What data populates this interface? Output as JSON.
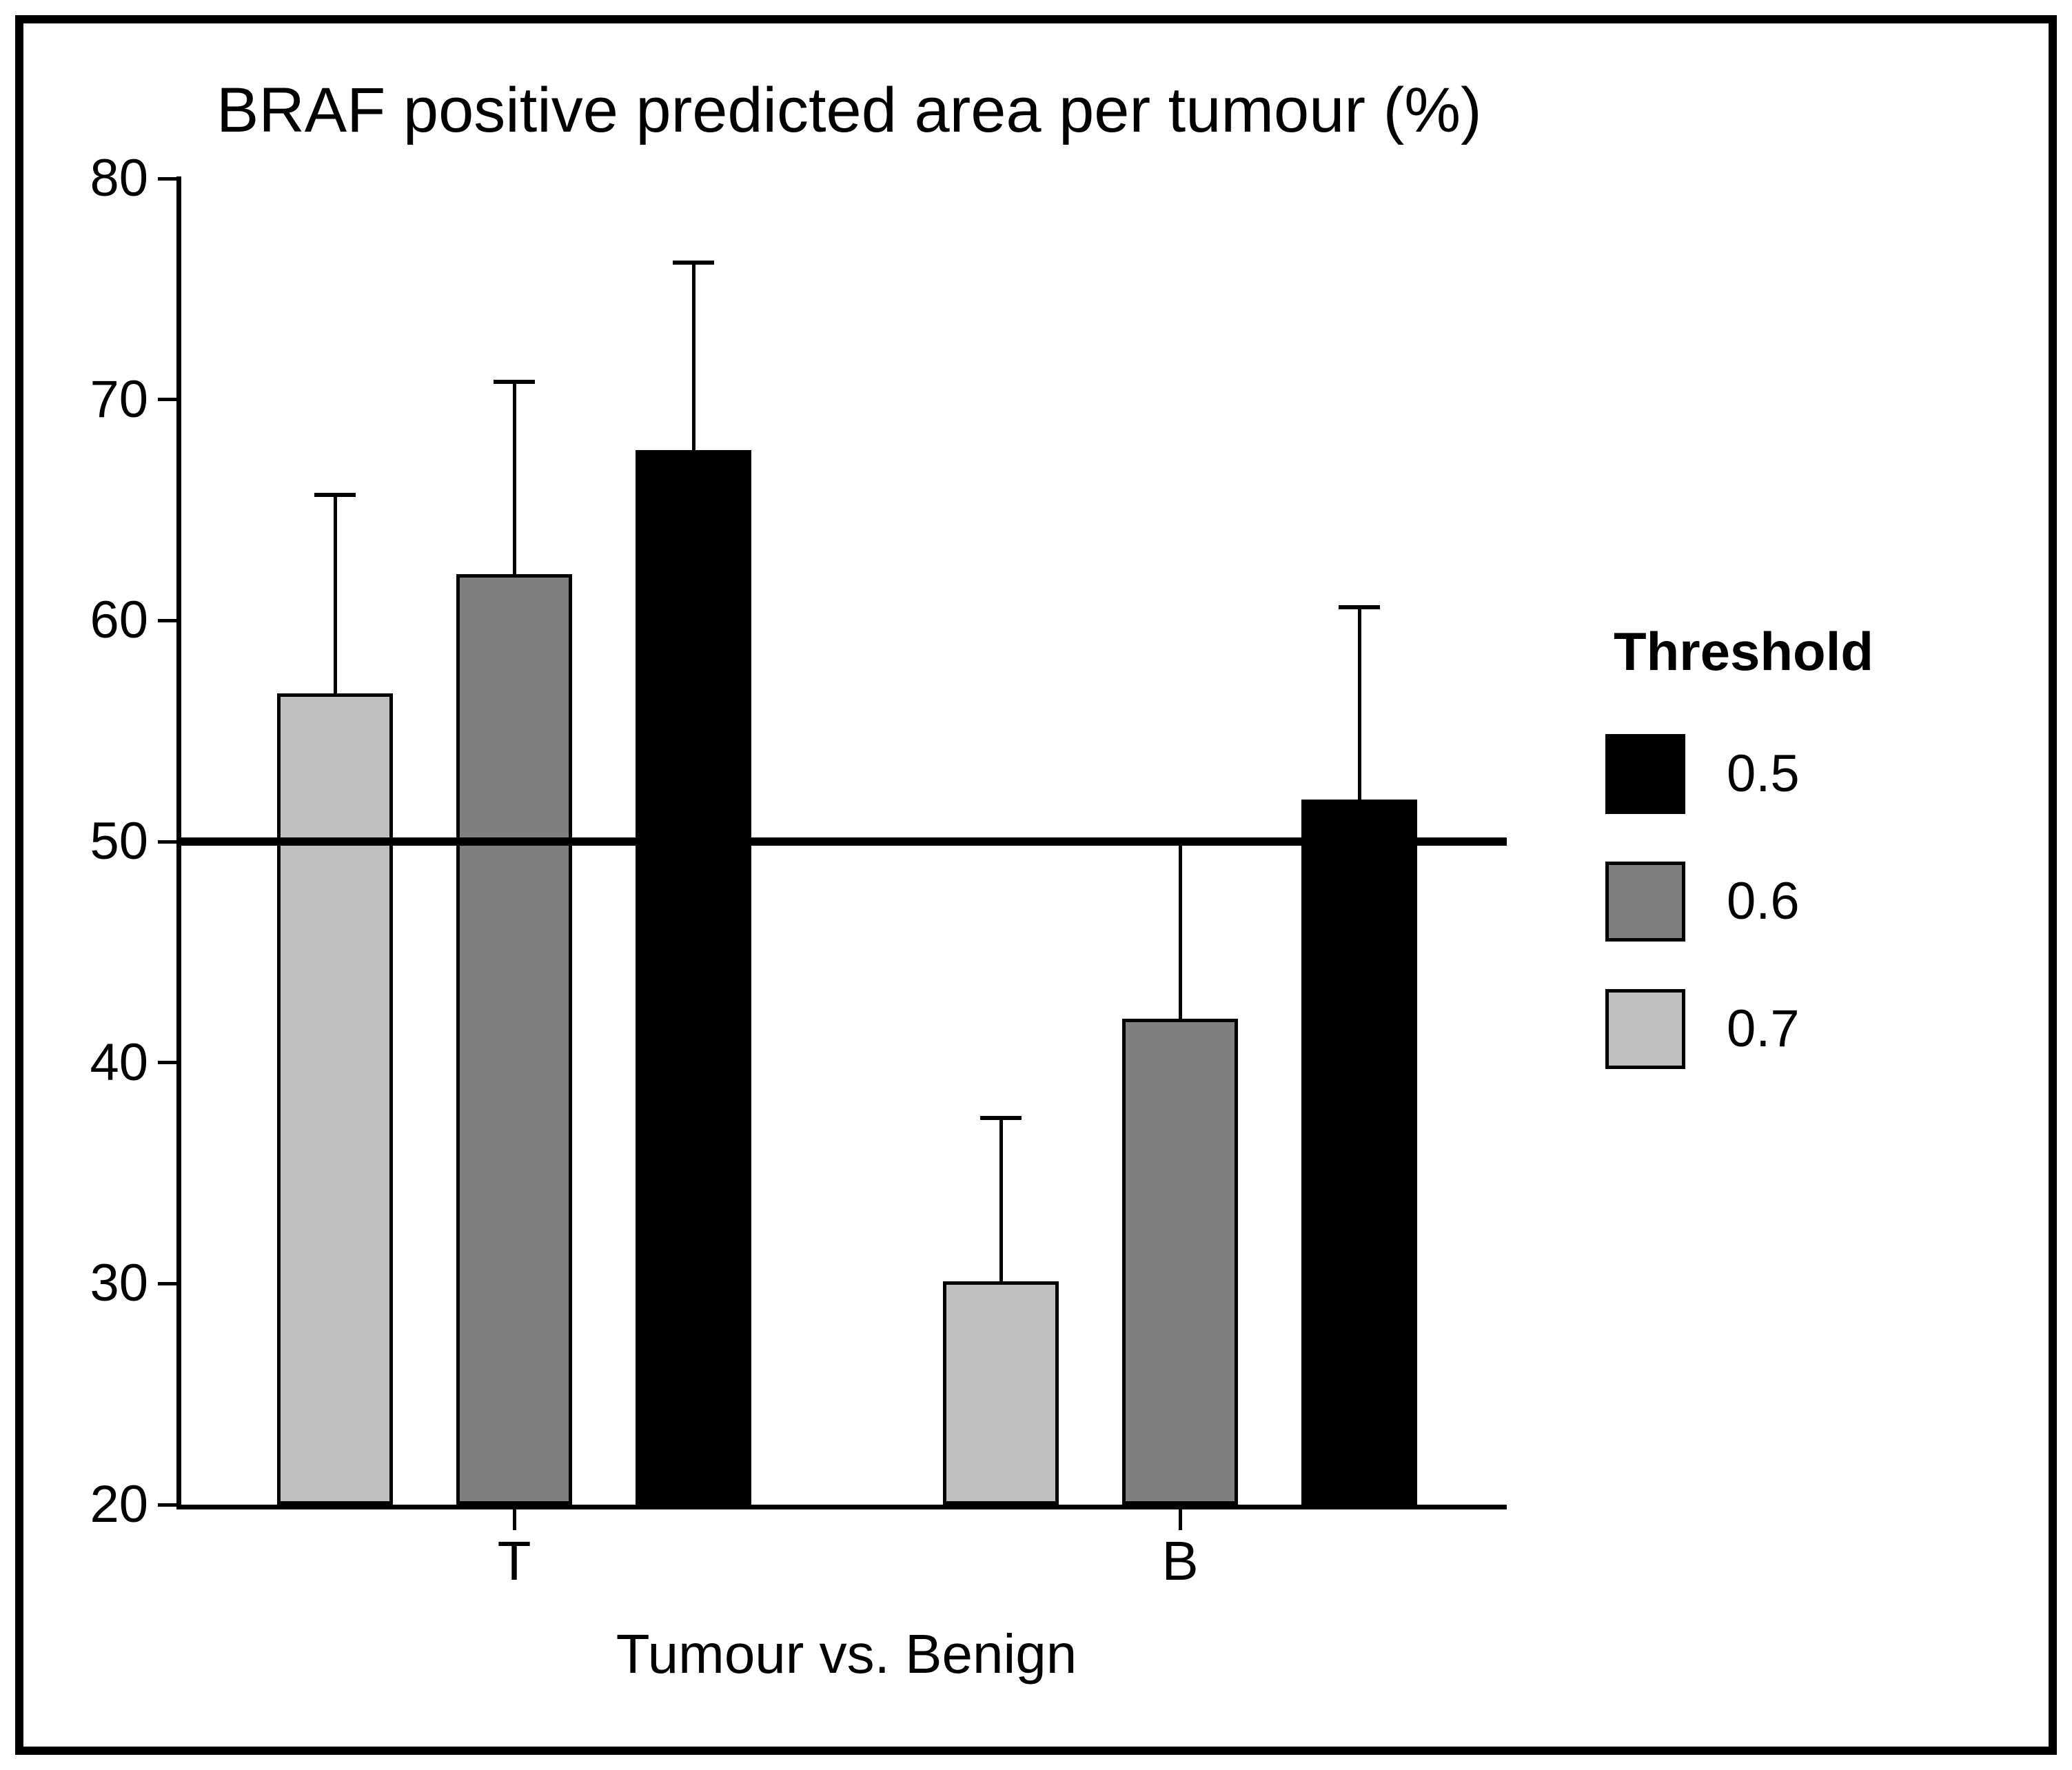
{
  "figure": {
    "background_color": "#ffffff",
    "border_color": "#000000"
  },
  "chart_data": {
    "type": "bar",
    "title": "BRAF positive predicted area per tumour (%)",
    "xlabel": "Tumour vs. Benign",
    "ylabel": "",
    "categories": [
      "T",
      "B"
    ],
    "series": [
      {
        "name": "0.5",
        "color": "#000000",
        "values": [
          67.7,
          51.9
        ],
        "error_top": [
          76.2,
          60.6
        ]
      },
      {
        "name": "0.6",
        "color": "#7f7f7f",
        "values": [
          62.1,
          42.0
        ],
        "error_top": [
          70.8,
          50.0
        ]
      },
      {
        "name": "0.7",
        "color": "#bfbfbf",
        "values": [
          56.7,
          30.1
        ],
        "error_top": [
          65.7,
          37.5
        ]
      }
    ],
    "group_bar_order": [
      "0.7",
      "0.6",
      "0.5"
    ],
    "ylim": [
      20,
      80
    ],
    "yticks": [
      20,
      30,
      40,
      50,
      60,
      70,
      80
    ],
    "reference_line": 50,
    "error_bars": "upper-only",
    "grid": false,
    "legend_title": "Threshold",
    "legend_entries": [
      "0.5",
      "0.6",
      "0.7"
    ],
    "legend_position": "right"
  }
}
